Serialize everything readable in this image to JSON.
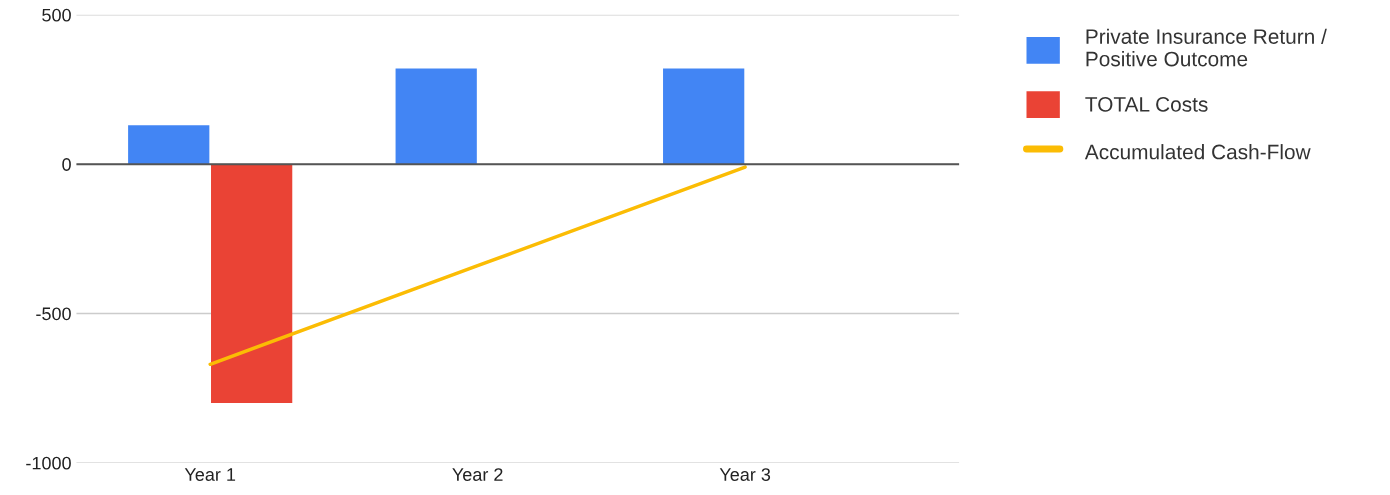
{
  "chart_data": {
    "type": "bar",
    "categories": [
      "Year 1",
      "Year 2",
      "Year 3"
    ],
    "series": [
      {
        "name": "Private Insurance Return / Positive Outcome",
        "color": "#4285f4",
        "values": [
          130,
          320,
          320
        ]
      },
      {
        "name": "TOTAL Costs",
        "color": "#ea4335",
        "values": [
          -800,
          0,
          0
        ]
      },
      {
        "name": "Accumulated Cash-Flow",
        "type": "line",
        "color": "#fbbc04",
        "values": [
          -670,
          -340,
          -10
        ]
      }
    ],
    "ylim": [
      -1000,
      500
    ],
    "yticks": [
      -1000,
      -500,
      0,
      500
    ],
    "grid": "y",
    "legend": "top right"
  }
}
